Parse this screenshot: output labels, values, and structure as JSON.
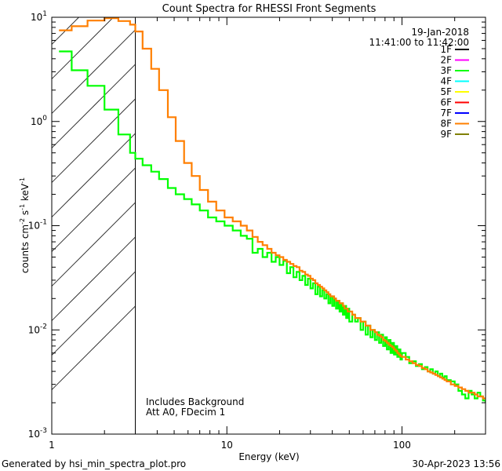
{
  "chart_data": {
    "type": "line",
    "title": "Count Spectra for RHESSI Front Segments",
    "xlabel": "Energy (keV)",
    "ylabel_parts": {
      "a": "counts cm",
      "b": "-2",
      "c": " s",
      "d": "-1",
      "e": " keV",
      "f": "-1"
    },
    "x_scale": "log",
    "y_scale": "log",
    "xlim": [
      1.0,
      300.0
    ],
    "ylim": [
      0.001,
      10.0
    ],
    "x_ticks": [
      {
        "v": 1,
        "label": "1"
      },
      {
        "v": 10,
        "label": "10"
      },
      {
        "v": 100,
        "label": "100"
      }
    ],
    "y_ticks": [
      {
        "v": 10,
        "base": "10",
        "exp": "1"
      },
      {
        "v": 1,
        "base": "10",
        "exp": "0"
      },
      {
        "v": 0.1,
        "base": "10",
        "exp": "-1"
      },
      {
        "v": 0.01,
        "base": "10",
        "exp": "-2"
      },
      {
        "v": 0.001,
        "base": "10",
        "exp": "-3"
      }
    ],
    "hatched_region": {
      "x_from": 1.0,
      "x_to": 3.0
    },
    "legend": {
      "date": "19-Jan-2018",
      "time_range": "11:41:00 to 11:42:00",
      "entries": [
        {
          "name": "1F",
          "color": "#000000"
        },
        {
          "name": "2F",
          "color": "#ff00ff"
        },
        {
          "name": "3F",
          "color": "#00ff00"
        },
        {
          "name": "4F",
          "color": "#00ffff"
        },
        {
          "name": "5F",
          "color": "#ffff00"
        },
        {
          "name": "6F",
          "color": "#ff0000"
        },
        {
          "name": "7F",
          "color": "#0000ff"
        },
        {
          "name": "8F",
          "color": "#ff7f00"
        },
        {
          "name": "9F",
          "color": "#808000"
        }
      ]
    },
    "annotations": [
      "Includes Background",
      "Att A0, FDecim 1"
    ],
    "series": [
      {
        "name": "3F",
        "color": "#00ff00",
        "x": [
          1.1,
          1.3,
          1.6,
          2.0,
          2.4,
          2.8,
          3.0,
          3.3,
          3.7,
          4.1,
          4.6,
          5.1,
          5.7,
          6.3,
          7.0,
          7.8,
          8.7,
          9.7,
          10.8,
          12.0,
          13.0,
          14.0,
          15.0,
          16.0,
          17.0,
          18.0,
          19.0,
          20.0,
          21.0,
          22.0,
          23.0,
          24.0,
          25.0,
          26.0,
          27.0,
          28.0,
          29.0,
          30.0,
          31.0,
          32.0,
          33.0,
          34.0,
          35.0,
          36.0,
          37.0,
          38.0,
          39.0,
          40.0,
          41.0,
          42.0,
          43.0,
          44.0,
          45.0,
          46.0,
          47.0,
          48.0,
          49.0,
          50.0,
          52.0,
          54.0,
          56.0,
          58.0,
          60.0,
          62.0,
          64.0,
          66.0,
          68.0,
          70.0,
          72.0,
          74.0,
          76.0,
          78.0,
          80.0,
          82.0,
          84.0,
          86.0,
          88.0,
          90.0,
          92.0,
          94.0,
          96.0,
          98.0,
          100.0,
          105.0,
          110.0,
          115.0,
          120.0,
          125.0,
          130.0,
          135.0,
          140.0,
          145.0,
          150.0,
          155.0,
          160.0,
          165.0,
          170.0,
          175.0,
          180.0,
          190.0,
          200.0,
          210.0,
          220.0,
          230.0,
          240.0,
          250.0,
          260.0,
          270.0,
          280.0,
          290.0,
          300.0
        ],
        "values": [
          4.7,
          3.1,
          2.2,
          1.3,
          0.75,
          0.5,
          0.44,
          0.38,
          0.33,
          0.28,
          0.23,
          0.2,
          0.18,
          0.16,
          0.14,
          0.12,
          0.11,
          0.1,
          0.09,
          0.08,
          0.075,
          0.055,
          0.06,
          0.05,
          0.055,
          0.045,
          0.05,
          0.042,
          0.046,
          0.035,
          0.04,
          0.032,
          0.036,
          0.03,
          0.033,
          0.027,
          0.031,
          0.025,
          0.028,
          0.022,
          0.026,
          0.021,
          0.024,
          0.02,
          0.022,
          0.018,
          0.021,
          0.017,
          0.02,
          0.016,
          0.019,
          0.015,
          0.018,
          0.014,
          0.017,
          0.013,
          0.016,
          0.012,
          0.014,
          0.012,
          0.013,
          0.01,
          0.012,
          0.009,
          0.011,
          0.0085,
          0.01,
          0.008,
          0.0095,
          0.0075,
          0.009,
          0.007,
          0.0085,
          0.0065,
          0.008,
          0.006,
          0.0075,
          0.0058,
          0.007,
          0.0055,
          0.0065,
          0.0052,
          0.006,
          0.0055,
          0.0048,
          0.005,
          0.0045,
          0.0047,
          0.0042,
          0.0044,
          0.004,
          0.0042,
          0.0038,
          0.004,
          0.0036,
          0.0038,
          0.0035,
          0.0036,
          0.0033,
          0.0032,
          0.003,
          0.0026,
          0.0024,
          0.0022,
          0.0026,
          0.0024,
          0.0022,
          0.0025,
          0.0023,
          0.0021,
          0.002
        ]
      },
      {
        "name": "8F",
        "color": "#ff7f00",
        "x": [
          1.1,
          1.3,
          1.6,
          2.0,
          2.4,
          2.8,
          3.0,
          3.3,
          3.7,
          4.1,
          4.6,
          5.1,
          5.7,
          6.3,
          7.0,
          7.8,
          8.7,
          9.7,
          10.8,
          12.0,
          13.0,
          14.0,
          15.0,
          16.0,
          17.0,
          18.0,
          19.0,
          20.0,
          21.0,
          22.0,
          23.0,
          24.0,
          25.0,
          26.0,
          27.0,
          28.0,
          29.0,
          30.0,
          31.0,
          32.0,
          33.0,
          34.0,
          35.0,
          36.0,
          37.0,
          38.0,
          39.0,
          40.0,
          41.0,
          42.0,
          43.0,
          44.0,
          45.0,
          46.0,
          47.0,
          48.0,
          49.0,
          50.0,
          52.0,
          54.0,
          56.0,
          58.0,
          60.0,
          62.0,
          64.0,
          66.0,
          68.0,
          70.0,
          72.0,
          74.0,
          76.0,
          78.0,
          80.0,
          82.0,
          84.0,
          86.0,
          88.0,
          90.0,
          92.0,
          94.0,
          96.0,
          98.0,
          100.0,
          105.0,
          110.0,
          115.0,
          120.0,
          125.0,
          130.0,
          135.0,
          140.0,
          145.0,
          150.0,
          155.0,
          160.0,
          165.0,
          170.0,
          175.0,
          180.0,
          190.0,
          200.0,
          210.0,
          220.0,
          230.0,
          240.0,
          250.0,
          260.0,
          270.0,
          280.0,
          290.0,
          300.0
        ],
        "values": [
          7.5,
          8.2,
          9.3,
          9.8,
          9.2,
          8.5,
          7.3,
          5.0,
          3.2,
          2.0,
          1.1,
          0.65,
          0.4,
          0.3,
          0.22,
          0.17,
          0.14,
          0.12,
          0.11,
          0.1,
          0.09,
          0.078,
          0.07,
          0.065,
          0.06,
          0.055,
          0.052,
          0.05,
          0.047,
          0.045,
          0.043,
          0.041,
          0.04,
          0.037,
          0.036,
          0.034,
          0.033,
          0.031,
          0.03,
          0.028,
          0.027,
          0.026,
          0.025,
          0.024,
          0.023,
          0.022,
          0.021,
          0.021,
          0.02,
          0.019,
          0.019,
          0.018,
          0.018,
          0.017,
          0.016,
          0.016,
          0.015,
          0.015,
          0.014,
          0.013,
          0.013,
          0.012,
          0.012,
          0.011,
          0.011,
          0.01,
          0.01,
          0.0095,
          0.009,
          0.0088,
          0.0085,
          0.008,
          0.0078,
          0.0075,
          0.0072,
          0.007,
          0.0068,
          0.0065,
          0.0063,
          0.006,
          0.0058,
          0.0056,
          0.0055,
          0.0052,
          0.005,
          0.0048,
          0.0046,
          0.0045,
          0.0043,
          0.0042,
          0.004,
          0.0039,
          0.0038,
          0.0037,
          0.0036,
          0.0035,
          0.0034,
          0.0033,
          0.0032,
          0.003,
          0.0029,
          0.0028,
          0.0027,
          0.0026,
          0.0025,
          0.0025,
          0.0024,
          0.0023,
          0.0023,
          0.0022,
          0.0022
        ]
      }
    ]
  },
  "footer": {
    "left": "Generated by hsi_min_spectra_plot.pro",
    "right": "30-Apr-2023 13:56"
  }
}
